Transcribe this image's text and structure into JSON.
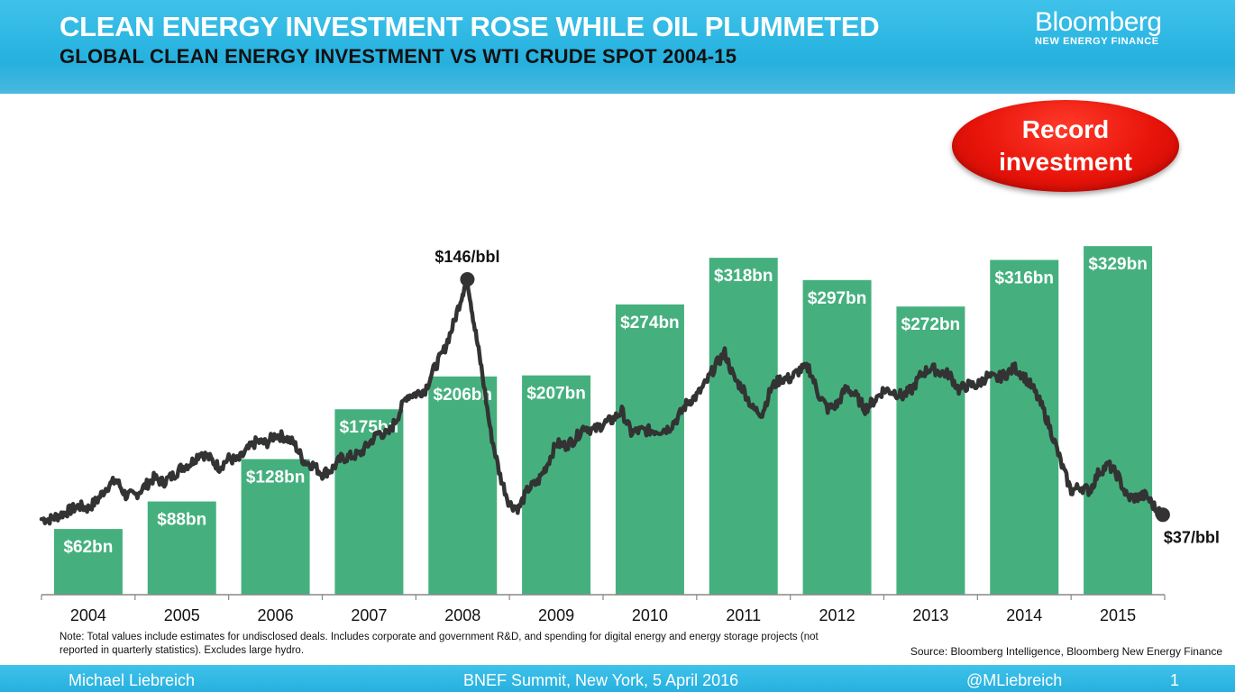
{
  "header": {
    "title": "CLEAN ENERGY INVESTMENT ROSE WHILE OIL PLUMMETED",
    "subtitle": "GLOBAL CLEAN ENERGY INVESTMENT VS WTI CRUDE SPOT 2004-15",
    "brand_name": "Bloomberg",
    "brand_sub": "NEW ENERGY FINANCE"
  },
  "badge": {
    "text": "Record investment",
    "color": "#e8140a"
  },
  "colors": {
    "bar": "#45b07e",
    "line": "#333333",
    "header": "#29b4e2"
  },
  "chart_data": {
    "type": "bar",
    "categories": [
      "2004",
      "2005",
      "2006",
      "2007",
      "2008",
      "2009",
      "2010",
      "2011",
      "2012",
      "2013",
      "2014",
      "2015"
    ],
    "series": [
      {
        "values": [
          62,
          88,
          128,
          175,
          206,
          207,
          274,
          318,
          297,
          272,
          316,
          329
        ],
        "labels": [
          "$62bn",
          "$88bn",
          "$128bn",
          "$175bn",
          "$206bn",
          "$207bn",
          "$274bn",
          "$318bn",
          "$297bn",
          "$272bn",
          "$316bn",
          "$329bn"
        ]
      }
    ],
    "overlay_line": {
      "type": "line",
      "points": [
        [
          2004.0,
          35
        ],
        [
          2004.1,
          35
        ],
        [
          2004.2,
          37
        ],
        [
          2004.3,
          39
        ],
        [
          2004.4,
          41
        ],
        [
          2004.5,
          40
        ],
        [
          2004.6,
          44
        ],
        [
          2004.7,
          50
        ],
        [
          2004.8,
          53
        ],
        [
          2004.9,
          46
        ],
        [
          2005.0,
          46
        ],
        [
          2005.1,
          50
        ],
        [
          2005.2,
          54
        ],
        [
          2005.3,
          52
        ],
        [
          2005.4,
          55
        ],
        [
          2005.5,
          59
        ],
        [
          2005.6,
          61
        ],
        [
          2005.7,
          66
        ],
        [
          2005.8,
          63
        ],
        [
          2005.9,
          59
        ],
        [
          2006.0,
          63
        ],
        [
          2006.1,
          62
        ],
        [
          2006.2,
          67
        ],
        [
          2006.3,
          71
        ],
        [
          2006.4,
          70
        ],
        [
          2006.5,
          74
        ],
        [
          2006.6,
          73
        ],
        [
          2006.7,
          70
        ],
        [
          2006.8,
          62
        ],
        [
          2006.9,
          60
        ],
        [
          2007.0,
          56
        ],
        [
          2007.1,
          58
        ],
        [
          2007.2,
          63
        ],
        [
          2007.3,
          64
        ],
        [
          2007.4,
          65
        ],
        [
          2007.5,
          70
        ],
        [
          2007.6,
          75
        ],
        [
          2007.7,
          74
        ],
        [
          2007.8,
          82
        ],
        [
          2007.9,
          92
        ],
        [
          2008.0,
          93
        ],
        [
          2008.1,
          95
        ],
        [
          2008.2,
          105
        ],
        [
          2008.3,
          113
        ],
        [
          2008.4,
          125
        ],
        [
          2008.5,
          140
        ],
        [
          2008.55,
          146
        ],
        [
          2008.62,
          126
        ],
        [
          2008.7,
          105
        ],
        [
          2008.8,
          75
        ],
        [
          2008.9,
          55
        ],
        [
          2009.0,
          42
        ],
        [
          2009.1,
          40
        ],
        [
          2009.2,
          49
        ],
        [
          2009.3,
          52
        ],
        [
          2009.4,
          60
        ],
        [
          2009.5,
          70
        ],
        [
          2009.6,
          69
        ],
        [
          2009.7,
          72
        ],
        [
          2009.8,
          78
        ],
        [
          2009.9,
          76
        ],
        [
          2010.0,
          79
        ],
        [
          2010.1,
          81
        ],
        [
          2010.2,
          85
        ],
        [
          2010.3,
          75
        ],
        [
          2010.4,
          76
        ],
        [
          2010.5,
          76
        ],
        [
          2010.6,
          76
        ],
        [
          2010.7,
          77
        ],
        [
          2010.8,
          82
        ],
        [
          2010.9,
          89
        ],
        [
          2011.0,
          92
        ],
        [
          2011.1,
          98
        ],
        [
          2011.2,
          106
        ],
        [
          2011.3,
          112
        ],
        [
          2011.4,
          100
        ],
        [
          2011.5,
          95
        ],
        [
          2011.6,
          86
        ],
        [
          2011.7,
          84
        ],
        [
          2011.8,
          96
        ],
        [
          2011.9,
          100
        ],
        [
          2012.0,
          100
        ],
        [
          2012.1,
          104
        ],
        [
          2012.2,
          105
        ],
        [
          2012.3,
          93
        ],
        [
          2012.4,
          86
        ],
        [
          2012.5,
          88
        ],
        [
          2012.6,
          96
        ],
        [
          2012.7,
          92
        ],
        [
          2012.8,
          86
        ],
        [
          2012.9,
          90
        ],
        [
          2013.0,
          95
        ],
        [
          2013.1,
          94
        ],
        [
          2013.2,
          92
        ],
        [
          2013.3,
          95
        ],
        [
          2013.4,
          102
        ],
        [
          2013.5,
          105
        ],
        [
          2013.6,
          103
        ],
        [
          2013.7,
          102
        ],
        [
          2013.8,
          95
        ],
        [
          2013.9,
          97
        ],
        [
          2014.0,
          97
        ],
        [
          2014.1,
          101
        ],
        [
          2014.2,
          100
        ],
        [
          2014.3,
          102
        ],
        [
          2014.4,
          105
        ],
        [
          2014.5,
          101
        ],
        [
          2014.6,
          95
        ],
        [
          2014.7,
          86
        ],
        [
          2014.8,
          74
        ],
        [
          2014.9,
          60
        ],
        [
          2015.0,
          48
        ],
        [
          2015.1,
          50
        ],
        [
          2015.2,
          48
        ],
        [
          2015.3,
          57
        ],
        [
          2015.4,
          60
        ],
        [
          2015.5,
          55
        ],
        [
          2015.6,
          45
        ],
        [
          2015.7,
          45
        ],
        [
          2015.8,
          46
        ],
        [
          2015.9,
          40
        ],
        [
          2015.98,
          37
        ]
      ],
      "annotations": [
        {
          "x": 2008.55,
          "y": 146,
          "text": "$146/bbl"
        },
        {
          "x": 2015.98,
          "y": 37,
          "text": "$37/bbl"
        }
      ]
    },
    "y_range_bn": [
      0,
      340
    ],
    "y_range_oil": [
      0,
      150
    ],
    "grid": false,
    "legend": "none"
  },
  "note": "Note: Total values include estimates for undisclosed deals. Includes corporate and government R&D, and spending for digital energy and energy storage projects (not reported in quarterly statistics). Excludes large hydro.",
  "source": "Source: Bloomberg Intelligence, Bloomberg New Energy Finance",
  "footer": {
    "author": "Michael Liebreich",
    "event": "BNEF Summit, New York, 5 April 2016",
    "handle": "@MLiebreich",
    "page": "1"
  }
}
